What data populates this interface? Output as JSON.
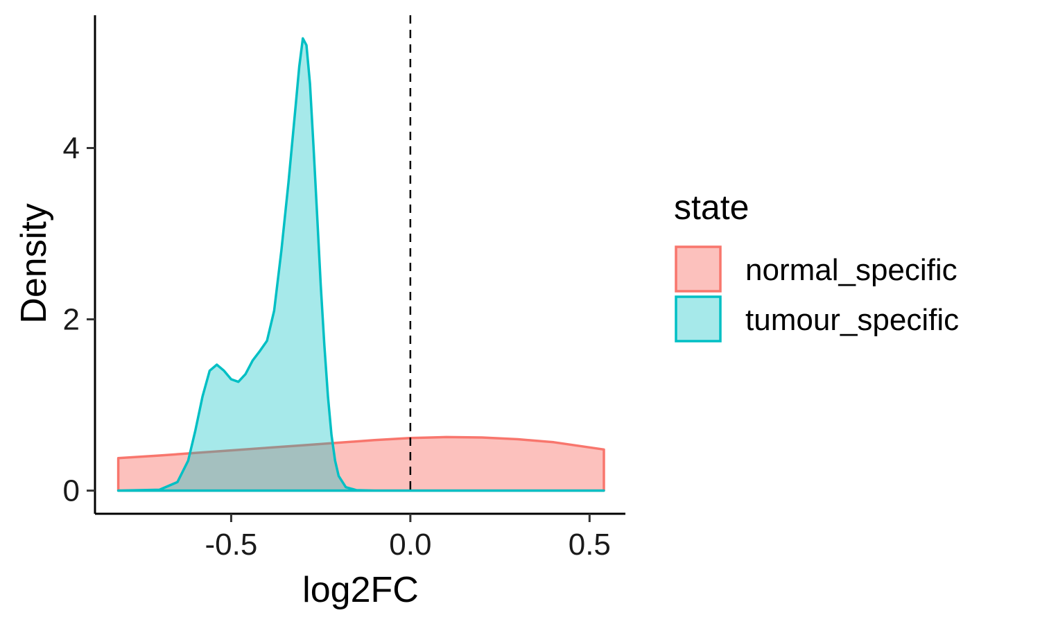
{
  "chart_data": {
    "type": "area",
    "xlabel": "log2FC",
    "ylabel": "Density",
    "xlim": [
      -0.88,
      0.6
    ],
    "ylim": [
      -0.27,
      5.55
    ],
    "x_ticks": [
      -0.5,
      0.0,
      0.5
    ],
    "x_tick_labels": [
      "-0.5",
      "0.0",
      "0.5"
    ],
    "y_ticks": [
      0,
      2,
      4
    ],
    "y_tick_labels": [
      "0",
      "2",
      "4"
    ],
    "vline": {
      "x": 0.0,
      "style": "dashed",
      "color": "#000000"
    },
    "grid": false,
    "legend": {
      "title": "state",
      "position": "right"
    },
    "series": [
      {
        "name": "normal_specific",
        "line_color": "#F8766D",
        "fill_color": "#F8766D",
        "fill_opacity": 0.45,
        "x": [
          -0.815,
          -0.7,
          -0.6,
          -0.5,
          -0.4,
          -0.3,
          -0.2,
          -0.1,
          0.0,
          0.1,
          0.2,
          0.3,
          0.4,
          0.5,
          0.54
        ],
        "y": [
          0.38,
          0.41,
          0.44,
          0.47,
          0.5,
          0.53,
          0.56,
          0.59,
          0.615,
          0.625,
          0.62,
          0.6,
          0.565,
          0.505,
          0.48
        ]
      },
      {
        "name": "tumour_specific",
        "line_color": "#00BFC4",
        "fill_color": "#00BFC4",
        "fill_opacity": 0.35,
        "x": [
          -0.815,
          -0.7,
          -0.65,
          -0.62,
          -0.6,
          -0.58,
          -0.56,
          -0.54,
          -0.52,
          -0.5,
          -0.48,
          -0.46,
          -0.44,
          -0.42,
          -0.4,
          -0.38,
          -0.36,
          -0.34,
          -0.32,
          -0.31,
          -0.3,
          -0.29,
          -0.28,
          -0.27,
          -0.26,
          -0.25,
          -0.24,
          -0.23,
          -0.22,
          -0.21,
          -0.2,
          -0.18,
          -0.15,
          -0.1,
          0.0,
          0.2,
          0.54
        ],
        "y": [
          0,
          0.01,
          0.1,
          0.35,
          0.7,
          1.1,
          1.4,
          1.47,
          1.4,
          1.3,
          1.27,
          1.36,
          1.52,
          1.63,
          1.75,
          2.1,
          2.8,
          3.6,
          4.5,
          4.95,
          5.28,
          5.2,
          4.75,
          4.0,
          3.2,
          2.4,
          1.7,
          1.1,
          0.65,
          0.35,
          0.17,
          0.04,
          0.005,
          0,
          0,
          0,
          0
        ]
      }
    ]
  }
}
